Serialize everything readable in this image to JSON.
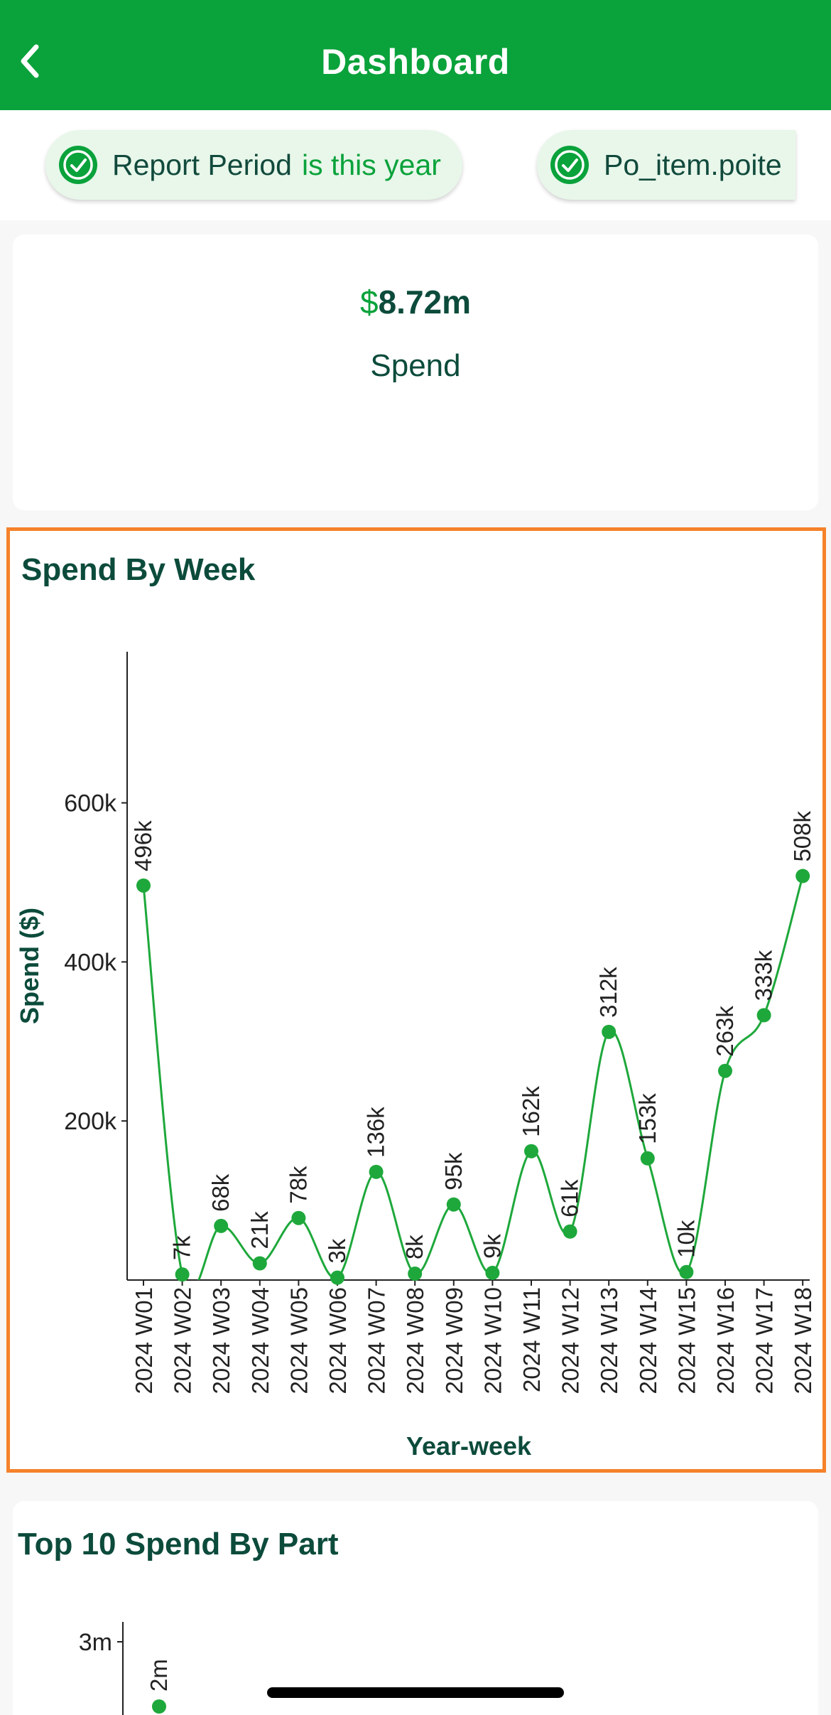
{
  "header": {
    "title": "Dashboard",
    "back_icon": "chevron-left-icon"
  },
  "filters": [
    {
      "label": "Report Period",
      "value": "is this year",
      "icon": "check-circle-icon"
    },
    {
      "label": "Po_item.poite",
      "value": "",
      "icon": "check-circle-icon"
    }
  ],
  "kpi": {
    "currency": "$",
    "value": "8.72m",
    "label": "Spend"
  },
  "colors": {
    "brand_green": "#0aa23b",
    "dark_green": "#0c4b3b",
    "highlight_border": "#f5822a",
    "line_green": "#1ea83b"
  },
  "spend_by_week": {
    "title": "Spend By Week",
    "chart_data": {
      "type": "line",
      "title": "Spend By Week",
      "xlabel": "Year-week",
      "ylabel": "Spend ($)",
      "categories": [
        "2024 W01",
        "2024 W02",
        "2024 W03",
        "2024 W04",
        "2024 W05",
        "2024 W06",
        "2024 W07",
        "2024 W08",
        "2024 W09",
        "2024 W10",
        "2024 W11",
        "2024 W12",
        "2024 W13",
        "2024 W14",
        "2024 W15",
        "2024 W16",
        "2024 W17",
        "2024 W18"
      ],
      "values": [
        496000,
        7000,
        68000,
        21000,
        78000,
        3000,
        136000,
        8000,
        95000,
        9000,
        162000,
        61000,
        312000,
        153000,
        10000,
        263000,
        333000,
        508000
      ],
      "data_labels": [
        "496k",
        "7k",
        "68k",
        "21k",
        "78k",
        "3k",
        "136k",
        "8k",
        "95k",
        "9k",
        "162k",
        "61k",
        "312k",
        "153k",
        "10k",
        "263k",
        "333k",
        "508k"
      ],
      "y_ticks": [
        200000,
        400000,
        600000
      ],
      "y_tick_labels": [
        "200k",
        "400k",
        "600k"
      ],
      "ylim": [
        0,
        790000
      ],
      "grid": false,
      "legend": "none"
    }
  },
  "top_parts": {
    "title": "Top 10 Spend By Part",
    "chart_data": {
      "type": "line",
      "y_ticks": [
        3000000
      ],
      "y_tick_labels": [
        "3m"
      ],
      "data_labels": [
        "2m"
      ],
      "values": [
        2000000
      ]
    }
  }
}
